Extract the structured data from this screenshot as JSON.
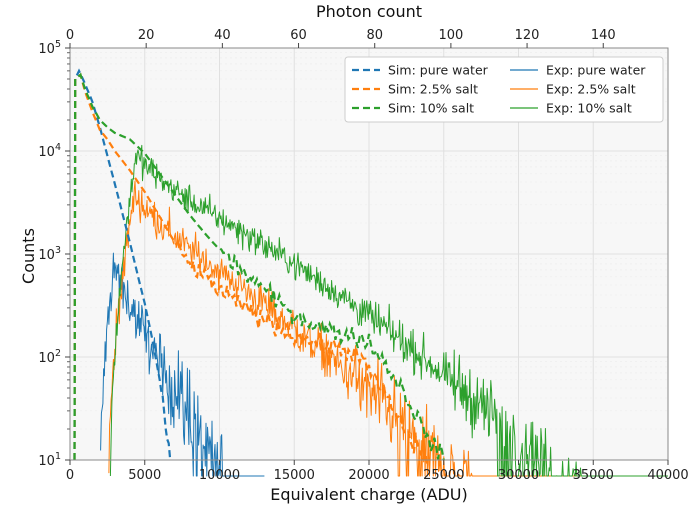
{
  "chart_data": {
    "type": "line",
    "title": "",
    "xlabel": "Equivalent charge (ADU)",
    "ylabel": "Counts",
    "top_xlabel": "Photon count",
    "xlim": [
      0,
      40000
    ],
    "ylim": [
      10,
      100000
    ],
    "yscale": "log",
    "grid": true,
    "legend_position": "top-right",
    "x_ticks": [
      0,
      5000,
      10000,
      15000,
      20000,
      25000,
      30000,
      35000,
      40000
    ],
    "x_tick_labels": [
      "0",
      "5000",
      "10000",
      "15000",
      "20000",
      "25000",
      "30000",
      "35000",
      "40000"
    ],
    "top_x_ticks": [
      0,
      20,
      40,
      60,
      80,
      100,
      120,
      140
    ],
    "top_x_tick_labels": [
      "0",
      "20",
      "40",
      "60",
      "80",
      "100",
      "120",
      "140"
    ],
    "top_xlim": [
      0,
      157
    ],
    "y_ticks": [
      10,
      100,
      1000,
      10000,
      100000
    ],
    "y_tick_labels": [
      "10",
      "10",
      "10",
      "10",
      "10"
    ],
    "y_tick_exponents": [
      "1",
      "2",
      "3",
      "4",
      "5"
    ],
    "series": [
      {
        "name": "Sim: pure water",
        "kind": "sim",
        "color": "#1f77b4",
        "dash": true,
        "points": [
          [
            300,
            10
          ],
          [
            350,
            50000
          ],
          [
            600,
            60000
          ],
          [
            1000,
            45000
          ],
          [
            1500,
            30000
          ],
          [
            2000,
            17000
          ],
          [
            2500,
            9000
          ],
          [
            3000,
            4800
          ],
          [
            3500,
            2500
          ],
          [
            4000,
            1300
          ],
          [
            4500,
            650
          ],
          [
            5000,
            330
          ],
          [
            5500,
            150
          ],
          [
            6000,
            60
          ],
          [
            6300,
            30
          ],
          [
            6500,
            15
          ],
          [
            6700,
            10
          ]
        ]
      },
      {
        "name": "Sim: 2.5% salt",
        "kind": "sim",
        "color": "#ff7f0e",
        "dash": true,
        "points": [
          [
            300,
            10
          ],
          [
            350,
            50000
          ],
          [
            700,
            55000
          ],
          [
            1000,
            38000
          ],
          [
            1500,
            24000
          ],
          [
            2000,
            16000
          ],
          [
            2500,
            13000
          ],
          [
            3000,
            10000
          ],
          [
            4000,
            6500
          ],
          [
            5000,
            4000
          ],
          [
            6000,
            2300
          ],
          [
            7000,
            1300
          ],
          [
            8000,
            800
          ],
          [
            9000,
            600
          ],
          [
            10000,
            450
          ],
          [
            11000,
            350
          ],
          [
            12000,
            280
          ],
          [
            13000,
            230
          ],
          [
            14000,
            190
          ],
          [
            15000,
            165
          ],
          [
            16000,
            145
          ],
          [
            17000,
            130
          ],
          [
            18000,
            120
          ],
          [
            19000,
            110
          ],
          [
            20000,
            75
          ],
          [
            21000,
            45
          ],
          [
            22000,
            25
          ],
          [
            23000,
            14
          ],
          [
            24000,
            10
          ]
        ]
      },
      {
        "name": "Sim: 10% salt",
        "kind": "sim",
        "color": "#2ca02c",
        "dash": true,
        "points": [
          [
            300,
            10
          ],
          [
            350,
            50000
          ],
          [
            700,
            55000
          ],
          [
            1000,
            40000
          ],
          [
            1500,
            27000
          ],
          [
            2000,
            20000
          ],
          [
            2500,
            17000
          ],
          [
            3000,
            15000
          ],
          [
            4000,
            13000
          ],
          [
            5000,
            9500
          ],
          [
            6000,
            6000
          ],
          [
            7000,
            3800
          ],
          [
            8000,
            2400
          ],
          [
            9000,
            1600
          ],
          [
            10000,
            1100
          ],
          [
            11000,
            800
          ],
          [
            12000,
            600
          ],
          [
            13000,
            450
          ],
          [
            14000,
            330
          ],
          [
            15000,
            260
          ],
          [
            16000,
            220
          ],
          [
            17000,
            190
          ],
          [
            18000,
            170
          ],
          [
            19000,
            160
          ],
          [
            20000,
            140
          ],
          [
            21000,
            90
          ],
          [
            22000,
            55
          ],
          [
            23000,
            30
          ],
          [
            24000,
            16
          ],
          [
            25000,
            10
          ]
        ]
      },
      {
        "name": "Exp: pure water",
        "kind": "exp",
        "color": "#1f77b4",
        "dash": false,
        "start": 2050,
        "peak_x": 2900,
        "peak_y": 750,
        "tail_rate": 0.00085,
        "end": 13000,
        "noise": 0.22
      },
      {
        "name": "Exp: 2.5% salt",
        "kind": "exp",
        "color": "#ff7f0e",
        "dash": false,
        "start": 2600,
        "peak_x": 4300,
        "peak_y": 3700,
        "tail_rate": 0.00042,
        "end": 40000,
        "noise": 0.17
      },
      {
        "name": "Exp: 10% salt",
        "kind": "exp",
        "color": "#2ca02c",
        "dash": false,
        "start": 2700,
        "peak_x": 4400,
        "peak_y": 9000,
        "tail_rate": 0.00036,
        "end": 40000,
        "noise": 0.14
      }
    ]
  }
}
